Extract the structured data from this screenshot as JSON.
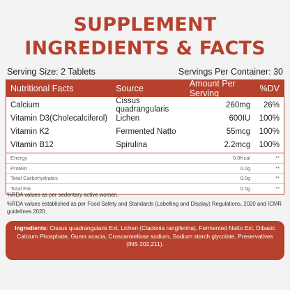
{
  "title": {
    "line1": "SUPPLEMENT",
    "line2": "INGREDIENTS & FACTS"
  },
  "serving": {
    "size": "Serving Size: 2 Tablets",
    "per_container": "Servings Per Container: 30"
  },
  "table": {
    "headers": {
      "facts": "Nutritional Facts",
      "source": "Source",
      "amount": "Amount Per Serving",
      "dv": "%DV"
    },
    "nutrients": [
      {
        "name": "Calcium",
        "source": "Cissus quadrangularis",
        "amount": "260mg",
        "dv": "26%"
      },
      {
        "name": "Vitamin D3(Cholecalciferol)",
        "source": "Lichen",
        "amount": "600IU",
        "dv": "100%"
      },
      {
        "name": "Vitamin K2",
        "source": "Fermented Natto",
        "amount": "55mcg",
        "dv": "100%"
      },
      {
        "name": "Vitamin B12",
        "source": "Spirulina",
        "amount": "2.2mcg",
        "dv": "100%"
      }
    ],
    "macros": [
      {
        "name": "Energy",
        "amount": "0.0Kcal",
        "dv": "**"
      },
      {
        "name": "Protein",
        "amount": "0.0g",
        "dv": "**"
      },
      {
        "name": "Total Carbohydrates",
        "amount": "0.0g",
        "dv": "**"
      },
      {
        "name": "Total Fat",
        "amount": "0.0g",
        "dv": "**"
      }
    ]
  },
  "notes": {
    "rda_sedentary": "%RDA values as per sedentary active women.",
    "rda_established": "%RDA values established as per Food Safety and  Standards (Labelling and Display) Regulations, 2020 and ICMR guidelines 2020."
  },
  "ingredients": {
    "label": "Ingredients:",
    "text": " Cissus quadrangularis Ext, Lichen (Cladonia rangiferina), Fermented Natto Ext, Dibasic Calcium Phosphate, Guma acacia, Croscarmellose sodium, Sodium starch glycolate, Preservatives (INS 202,211)."
  },
  "colors": {
    "accent": "#b6412d",
    "background": "#f3f3f3"
  }
}
